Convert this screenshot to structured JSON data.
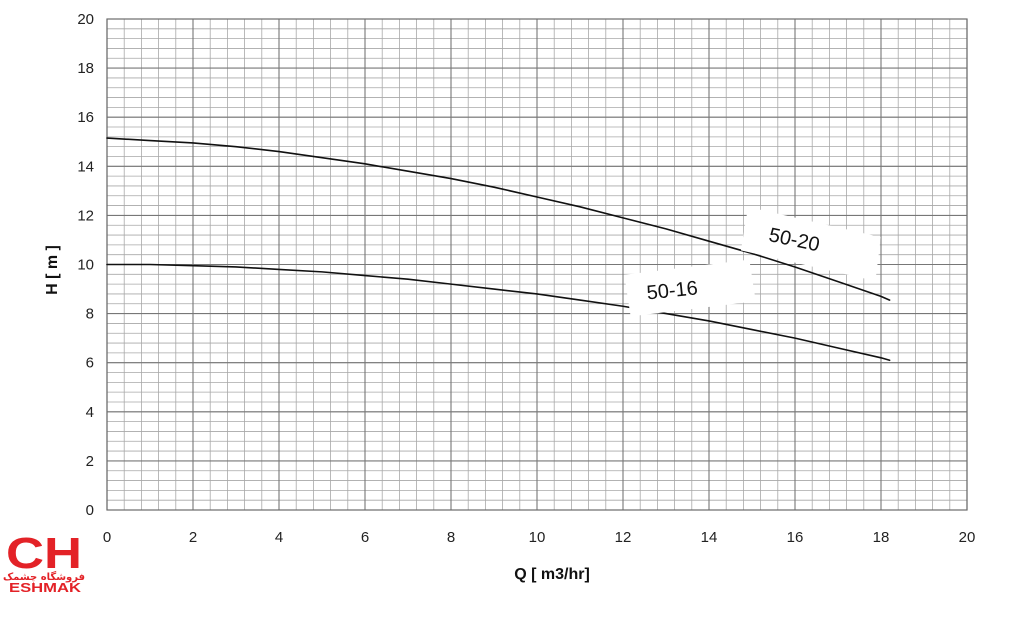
{
  "chart_data": {
    "type": "line",
    "xlabel": "Q [ m3/hr]",
    "ylabel": "H [ m ]",
    "xlim": [
      0,
      20
    ],
    "ylim": [
      0,
      20
    ],
    "xticks": [
      0,
      2,
      4,
      6,
      8,
      10,
      12,
      14,
      16,
      18,
      20
    ],
    "yticks": [
      0,
      2,
      4,
      6,
      8,
      10,
      12,
      14,
      16,
      18,
      20
    ],
    "x_minor_step": 0.4,
    "y_minor_step": 0.4,
    "grid": true,
    "series": [
      {
        "name": "50-20",
        "x": [
          0,
          1,
          2,
          3,
          4,
          5,
          6,
          7,
          8,
          9,
          10,
          11,
          12,
          13,
          14,
          15,
          16,
          17,
          18,
          18.2
        ],
        "y": [
          15.15,
          15.05,
          14.95,
          14.8,
          14.6,
          14.35,
          14.1,
          13.8,
          13.5,
          13.15,
          12.75,
          12.35,
          11.9,
          11.45,
          10.95,
          10.45,
          9.9,
          9.3,
          8.7,
          8.55
        ]
      },
      {
        "name": "50-16",
        "x": [
          0,
          1,
          2,
          3,
          4,
          5,
          6,
          7,
          8,
          9,
          10,
          11,
          12,
          13,
          14,
          15,
          16,
          17,
          18,
          18.2
        ],
        "y": [
          10.0,
          10.0,
          9.95,
          9.9,
          9.8,
          9.7,
          9.55,
          9.4,
          9.2,
          9.0,
          8.8,
          8.55,
          8.3,
          8.0,
          7.7,
          7.35,
          7.0,
          6.6,
          6.2,
          6.1
        ]
      }
    ]
  },
  "logo": {
    "letters": "CH",
    "subtitle_fa": "فروشگاه چشمک",
    "wordmark": "ESHMAK",
    "color": "#e32227"
  }
}
